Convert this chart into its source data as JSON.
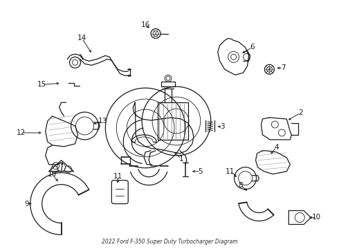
{
  "title": "2022 Ford F-350 Super Duty Turbocharger Diagram",
  "bg": "#ffffff",
  "lc": "#1a1a1a",
  "fig_w": 4.9,
  "fig_h": 3.6,
  "dpi": 100
}
